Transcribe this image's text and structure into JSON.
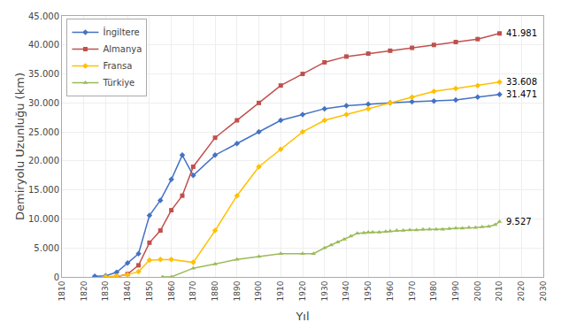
{
  "chart_data": {
    "type": "line",
    "xlabel": "Yıl",
    "ylabel": "Demiryolu Uzunluğu (km)",
    "xlim": [
      1810,
      2030
    ],
    "ylim": [
      0,
      45000
    ],
    "xticks": [
      1810,
      1820,
      1830,
      1840,
      1850,
      1860,
      1870,
      1880,
      1890,
      1900,
      1910,
      1920,
      1930,
      1940,
      1950,
      1960,
      1970,
      1980,
      1990,
      2000,
      2010,
      2020,
      2030
    ],
    "yticks": [
      0,
      {
        "value": 5000,
        "label": "5.000"
      },
      {
        "value": 10000,
        "label": "10.000"
      },
      {
        "value": 15000,
        "label": "15.000"
      },
      {
        "value": 20000,
        "label": "20.000"
      },
      {
        "value": 25000,
        "label": "25.000"
      },
      {
        "value": 30000,
        "label": "30.000"
      },
      {
        "value": 35000,
        "label": "35.000"
      },
      {
        "value": 40000,
        "label": "40.000"
      },
      {
        "value": 45000,
        "label": "45.000"
      }
    ],
    "grid": true,
    "legend": "upper left",
    "series": [
      {
        "name": "İngiltere",
        "color": "#4472C4",
        "marker": "diamond",
        "x": [
          1825,
          1830,
          1835,
          1840,
          1845,
          1850,
          1855,
          1860,
          1865,
          1870,
          1880,
          1890,
          1900,
          1910,
          1920,
          1930,
          1940,
          1950,
          1960,
          1970,
          1980,
          1990,
          2000,
          2010
        ],
        "values": [
          100,
          200,
          800,
          2400,
          4000,
          10600,
          13200,
          16800,
          21000,
          17500,
          21000,
          23000,
          25000,
          27000,
          28000,
          29000,
          29500,
          29800,
          30000,
          30200,
          30300,
          30500,
          31000,
          31471
        ]
      },
      {
        "name": "Almanya",
        "color": "#C0504D",
        "marker": "square",
        "x": [
          1835,
          1840,
          1845,
          1850,
          1855,
          1860,
          1865,
          1870,
          1880,
          1890,
          1900,
          1910,
          1920,
          1930,
          1940,
          1950,
          1960,
          1970,
          1980,
          1990,
          2000,
          2010
        ],
        "values": [
          0,
          500,
          2000,
          5900,
          8000,
          11500,
          14000,
          19000,
          24000,
          27000,
          30000,
          33000,
          35000,
          37000,
          38000,
          38500,
          39000,
          39500,
          40000,
          40500,
          41000,
          41981
        ]
      },
      {
        "name": "Fransa",
        "color": "#FFC000",
        "marker": "diamond",
        "x": [
          1830,
          1835,
          1840,
          1845,
          1850,
          1855,
          1860,
          1870,
          1880,
          1890,
          1900,
          1910,
          1920,
          1930,
          1940,
          1950,
          1960,
          1970,
          1980,
          1990,
          2000,
          2010
        ],
        "values": [
          30,
          140,
          400,
          900,
          2900,
          3000,
          3000,
          2500,
          8000,
          14000,
          19000,
          22000,
          25000,
          27000,
          28000,
          29000,
          30000,
          31000,
          32000,
          32500,
          33000,
          33608
        ]
      },
      {
        "name": "Türkiye",
        "color": "#9BBB59",
        "marker": "triangle",
        "x": [
          1856,
          1860,
          1870,
          1880,
          1890,
          1900,
          1910,
          1920,
          1925,
          1930,
          1933,
          1936,
          1939,
          1942,
          1945,
          1948,
          1950,
          1952,
          1955,
          1958,
          1960,
          1963,
          1966,
          1969,
          1972,
          1975,
          1978,
          1981,
          1984,
          1987,
          1990,
          1993,
          1996,
          1999,
          2002,
          2005,
          2008,
          2010
        ],
        "values": [
          0,
          0,
          1500,
          2200,
          3000,
          3500,
          4000,
          4000,
          4000,
          5000,
          5500,
          6000,
          6500,
          7000,
          7500,
          7600,
          7700,
          7700,
          7700,
          7800,
          7900,
          8000,
          8000,
          8100,
          8100,
          8200,
          8200,
          8200,
          8200,
          8300,
          8400,
          8400,
          8500,
          8500,
          8600,
          8700,
          9000,
          9527
        ]
      }
    ],
    "annotations": [
      {
        "text": "41.981",
        "x": 2011,
        "y": 41981
      },
      {
        "text": "33.608",
        "x": 2011,
        "y": 33608
      },
      {
        "text": "31.471",
        "x": 2011,
        "y": 31471
      },
      {
        "text": "9.527",
        "x": 2011,
        "y": 9527
      }
    ]
  }
}
